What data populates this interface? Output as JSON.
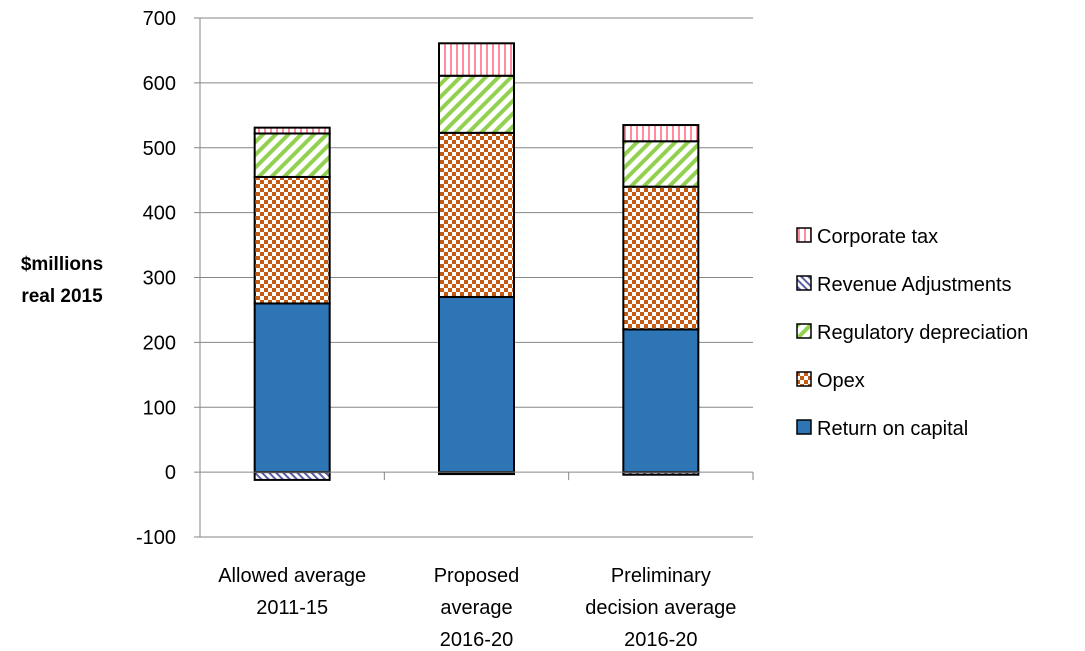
{
  "chart_data": {
    "type": "bar",
    "stacked": true,
    "ylabel_lines": [
      "$millions",
      "real 2015"
    ],
    "ylim": [
      -100,
      700
    ],
    "yticks": [
      -100,
      0,
      100,
      200,
      300,
      400,
      500,
      600,
      700
    ],
    "grid": true,
    "legend_position": "right",
    "categories": [
      [
        "Allowed average",
        "2011-15"
      ],
      [
        "Proposed",
        "average",
        "2016-20"
      ],
      [
        "Preliminary",
        "decision average",
        "2016-20"
      ]
    ],
    "series": [
      {
        "name": "Return on capital",
        "values": [
          260,
          270,
          220
        ],
        "color": "#2e75b6",
        "pattern": "solid"
      },
      {
        "name": "Opex",
        "values": [
          195,
          253,
          220
        ],
        "color": "#c55a11",
        "pattern": "checker"
      },
      {
        "name": "Regulatory depreciation",
        "values": [
          67,
          88,
          70
        ],
        "color": "#92d050",
        "pattern": "diagonal"
      },
      {
        "name": "Revenue Adjustments",
        "values": [
          -12,
          -3,
          -4
        ],
        "color": "#5b5ea6",
        "pattern": "backdiagonal"
      },
      {
        "name": "Corporate tax",
        "values": [
          9,
          50,
          25
        ],
        "color": "#ff99a8",
        "pattern": "vertical"
      }
    ],
    "legend_order": [
      "Corporate tax",
      "Revenue Adjustments",
      "Regulatory depreciation",
      "Opex",
      "Return on capital"
    ]
  }
}
